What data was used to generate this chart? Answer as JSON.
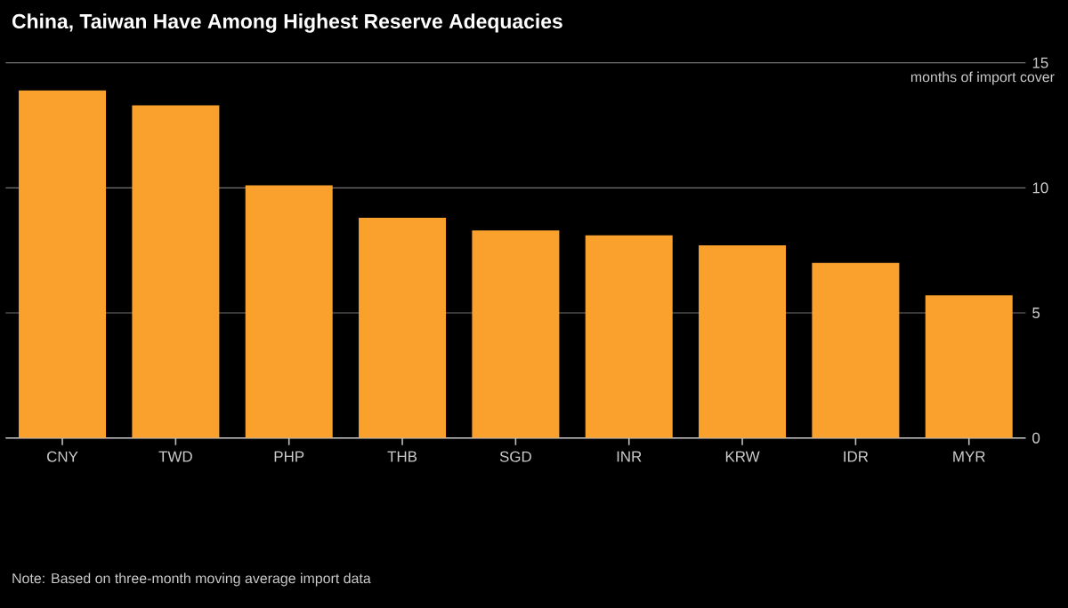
{
  "chart_data": {
    "type": "bar",
    "title": "China, Taiwan Have Among Highest Reserve Adequacies",
    "ylabel": "months of import cover",
    "categories": [
      "CNY",
      "TWD",
      "PHP",
      "THB",
      "SGD",
      "INR",
      "KRW",
      "IDR",
      "MYR"
    ],
    "values": [
      13.9,
      13.3,
      10.1,
      8.8,
      8.3,
      8.1,
      7.7,
      7.0,
      5.7
    ],
    "color": "#f9a12c",
    "ylim": [
      0,
      15
    ],
    "yticks": [
      0,
      5,
      10,
      15
    ],
    "grid": "y",
    "annotations": [
      "Note: Based on three-month moving average import data"
    ]
  }
}
